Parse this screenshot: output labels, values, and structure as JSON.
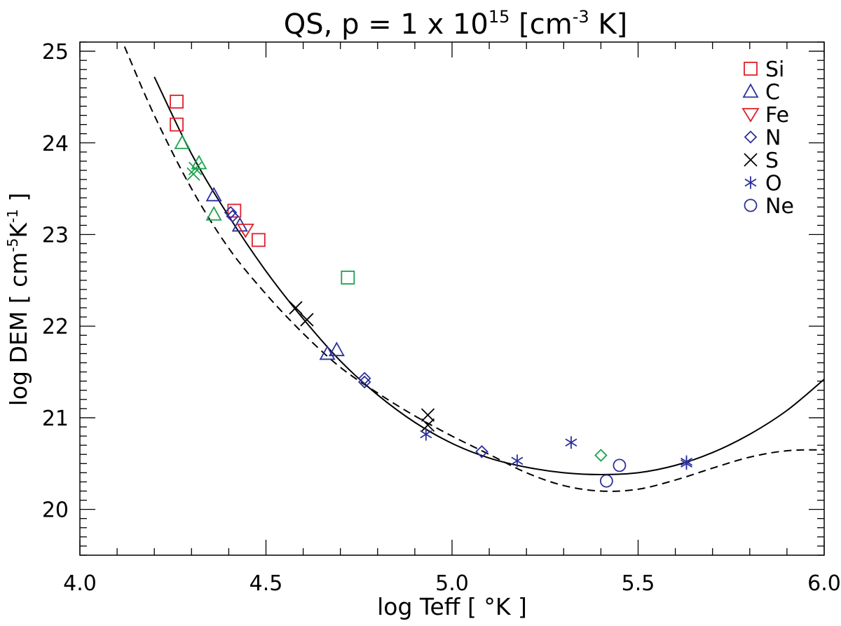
{
  "chart_data": {
    "type": "scatter",
    "title": "QS, p = 1 x 10",
    "title_sup": "15",
    "title_unit_pre": " [cm",
    "title_unit_sup": "-3",
    "title_unit_post": " K]",
    "xlabel": "log Teff [ °K ]",
    "ylabel_pre": "log DEM [ cm",
    "ylabel_sup1": "-5",
    "ylabel_mid": "K",
    "ylabel_sup2": "-1",
    "ylabel_post": " ]",
    "xlim": [
      4.0,
      6.0
    ],
    "ylim": [
      19.5,
      25.1
    ],
    "x_ticks": [
      {
        "value": 4.0,
        "label": "4.0"
      },
      {
        "value": 4.5,
        "label": "4.5"
      },
      {
        "value": 5.0,
        "label": "5.0"
      },
      {
        "value": 5.5,
        "label": "5.5"
      },
      {
        "value": 6.0,
        "label": "6.0"
      }
    ],
    "y_ticks": [
      {
        "value": 20,
        "label": "20"
      },
      {
        "value": 21,
        "label": "21"
      },
      {
        "value": 22,
        "label": "22"
      },
      {
        "value": 23,
        "label": "23"
      },
      {
        "value": 24,
        "label": "24"
      },
      {
        "value": 25,
        "label": "25"
      }
    ],
    "grid": false,
    "legend_position": "top-right",
    "legend": [
      {
        "label": "Si",
        "marker": "square",
        "color": "#e0202a"
      },
      {
        "label": "C",
        "marker": "triangle-up",
        "color": "#2b2f9a"
      },
      {
        "label": "Fe",
        "marker": "triangle-down",
        "color": "#e0202a"
      },
      {
        "label": "N",
        "marker": "diamond",
        "color": "#2b2f9a"
      },
      {
        "label": "S",
        "marker": "x",
        "color": "#000000"
      },
      {
        "label": "O",
        "marker": "asterisk",
        "color": "#2b2f9a"
      },
      {
        "label": "Ne",
        "marker": "circle",
        "color": "#2b2f9a"
      }
    ],
    "curves": [
      {
        "style": "solid",
        "color": "#000000",
        "x": [
          4.2,
          4.3,
          4.4,
          4.5,
          4.6,
          4.7,
          4.8,
          4.9,
          5.0,
          5.1,
          5.2,
          5.3,
          5.4,
          5.5,
          5.6,
          5.7,
          5.8,
          5.9,
          6.0
        ],
        "y": [
          24.72,
          23.88,
          23.2,
          22.6,
          22.08,
          21.62,
          21.25,
          20.95,
          20.72,
          20.56,
          20.46,
          20.4,
          20.38,
          20.4,
          20.48,
          20.62,
          20.82,
          21.08,
          21.42
        ]
      },
      {
        "style": "dashed",
        "color": "#000000",
        "x": [
          4.12,
          4.2,
          4.3,
          4.4,
          4.5,
          4.6,
          4.7,
          4.8,
          4.9,
          5.0,
          5.1,
          5.2,
          5.3,
          5.4,
          5.5,
          5.6,
          5.7,
          5.8,
          5.9,
          6.0
        ],
        "y": [
          25.05,
          24.3,
          23.5,
          22.85,
          22.35,
          21.92,
          21.55,
          21.27,
          21.02,
          20.8,
          20.6,
          20.4,
          20.26,
          20.2,
          20.22,
          20.32,
          20.45,
          20.57,
          20.64,
          20.65
        ]
      }
    ],
    "points": [
      {
        "x": 4.26,
        "y": 24.45,
        "marker": "square",
        "color": "#e0202a"
      },
      {
        "x": 4.26,
        "y": 24.2,
        "marker": "square",
        "color": "#e0202a"
      },
      {
        "x": 4.415,
        "y": 23.26,
        "marker": "square",
        "color": "#e0202a"
      },
      {
        "x": 4.48,
        "y": 22.94,
        "marker": "square",
        "color": "#e0202a"
      },
      {
        "x": 4.72,
        "y": 22.53,
        "marker": "square",
        "color": "#17a34a"
      },
      {
        "x": 4.275,
        "y": 24.0,
        "marker": "triangle-up",
        "color": "#17a34a"
      },
      {
        "x": 4.32,
        "y": 23.78,
        "marker": "triangle-up",
        "color": "#17a34a"
      },
      {
        "x": 4.36,
        "y": 23.22,
        "marker": "triangle-up",
        "color": "#17a34a"
      },
      {
        "x": 4.31,
        "y": 23.72,
        "marker": "x",
        "color": "#17a34a"
      },
      {
        "x": 4.305,
        "y": 23.66,
        "marker": "x",
        "color": "#17a34a"
      },
      {
        "x": 4.36,
        "y": 23.43,
        "marker": "triangle-up",
        "color": "#2b2f9a"
      },
      {
        "x": 4.43,
        "y": 23.1,
        "marker": "triangle-up",
        "color": "#2b2f9a"
      },
      {
        "x": 4.665,
        "y": 21.7,
        "marker": "triangle-up",
        "color": "#2b2f9a"
      },
      {
        "x": 4.69,
        "y": 21.74,
        "marker": "triangle-up",
        "color": "#2b2f9a"
      },
      {
        "x": 4.445,
        "y": 23.05,
        "marker": "triangle-down",
        "color": "#e0202a"
      },
      {
        "x": 4.405,
        "y": 23.24,
        "marker": "diamond",
        "color": "#2b2f9a"
      },
      {
        "x": 4.41,
        "y": 23.2,
        "marker": "diamond",
        "color": "#2b2f9a"
      },
      {
        "x": 4.765,
        "y": 21.43,
        "marker": "diamond",
        "color": "#2b2f9a"
      },
      {
        "x": 4.765,
        "y": 21.39,
        "marker": "diamond",
        "color": "#2b2f9a"
      },
      {
        "x": 5.08,
        "y": 20.63,
        "marker": "diamond",
        "color": "#2b2f9a"
      },
      {
        "x": 5.4,
        "y": 20.59,
        "marker": "diamond",
        "color": "#17a34a"
      },
      {
        "x": 4.58,
        "y": 22.2,
        "marker": "x",
        "color": "#000000"
      },
      {
        "x": 4.61,
        "y": 22.07,
        "marker": "x",
        "color": "#000000"
      },
      {
        "x": 4.935,
        "y": 21.03,
        "marker": "x",
        "color": "#000000"
      },
      {
        "x": 4.935,
        "y": 20.92,
        "marker": "x",
        "color": "#000000"
      },
      {
        "x": 4.93,
        "y": 20.82,
        "marker": "asterisk",
        "color": "#2b2f9a"
      },
      {
        "x": 5.175,
        "y": 20.53,
        "marker": "asterisk",
        "color": "#2b2f9a"
      },
      {
        "x": 5.32,
        "y": 20.73,
        "marker": "asterisk",
        "color": "#2b2f9a"
      },
      {
        "x": 5.63,
        "y": 20.52,
        "marker": "asterisk",
        "color": "#2b2f9a"
      },
      {
        "x": 5.63,
        "y": 20.5,
        "marker": "asterisk",
        "color": "#2b2f9a"
      },
      {
        "x": 5.415,
        "y": 20.31,
        "marker": "circle",
        "color": "#2b2f9a"
      },
      {
        "x": 5.45,
        "y": 20.48,
        "marker": "circle",
        "color": "#2b2f9a"
      }
    ]
  }
}
